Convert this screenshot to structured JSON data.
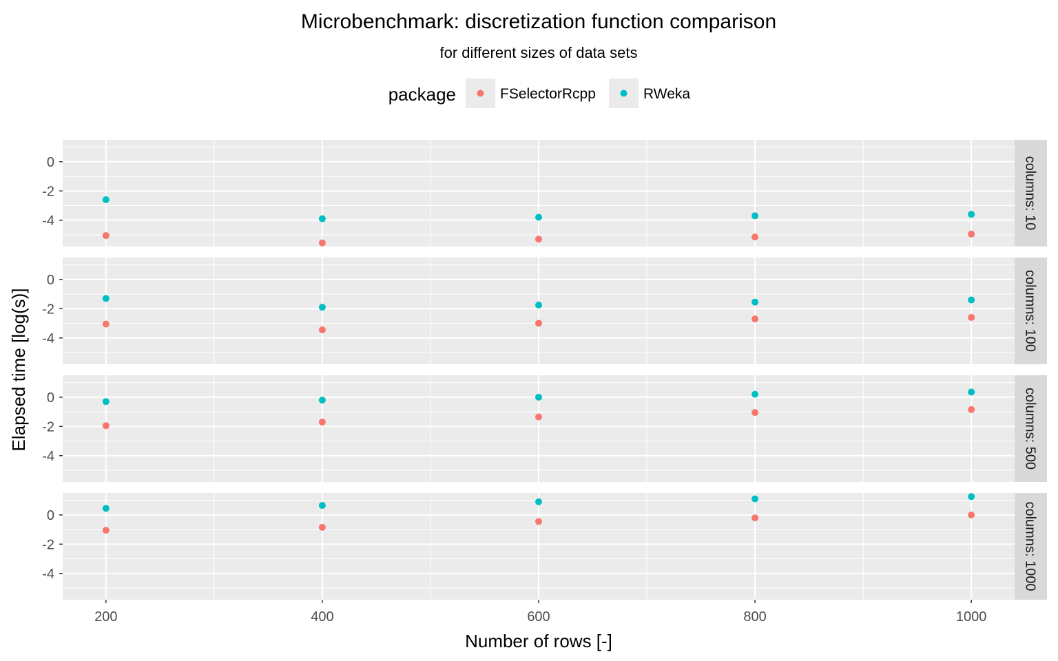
{
  "chart_data": {
    "type": "scatter",
    "title": "Microbenchmark: discretization function comparison",
    "subtitle": "for different sizes of data sets",
    "xlabel": "Number of rows [-]",
    "ylabel": "Elapsed time [log(s)]",
    "legend": {
      "title": "package",
      "placement": "top",
      "entries": [
        {
          "name": "FSelectorRcpp",
          "color": "#F8766D"
        },
        {
          "name": "RWeka",
          "color": "#00BFC4"
        }
      ]
    },
    "x_ticks": [
      200,
      400,
      600,
      800,
      1000
    ],
    "y_ticks": [
      0,
      -2,
      -4
    ],
    "xlim": [
      160,
      1040
    ],
    "ylim": [
      -5.8,
      1.5
    ],
    "grid": true,
    "x": [
      200,
      400,
      600,
      800,
      1000
    ],
    "panels": [
      {
        "label": "columns: 10",
        "series": [
          {
            "name": "FSelectorRcpp",
            "values": [
              -5.05,
              -5.55,
              -5.3,
              -5.15,
              -4.95
            ]
          },
          {
            "name": "RWeka",
            "values": [
              -2.6,
              -3.9,
              -3.8,
              -3.7,
              -3.6
            ]
          }
        ]
      },
      {
        "label": "columns: 100",
        "series": [
          {
            "name": "FSelectorRcpp",
            "values": [
              -3.05,
              -3.45,
              -3.0,
              -2.7,
              -2.6
            ]
          },
          {
            "name": "RWeka",
            "values": [
              -1.3,
              -1.9,
              -1.75,
              -1.55,
              -1.4
            ]
          }
        ]
      },
      {
        "label": "columns: 500",
        "series": [
          {
            "name": "FSelectorRcpp",
            "values": [
              -1.95,
              -1.7,
              -1.35,
              -1.05,
              -0.85
            ]
          },
          {
            "name": "RWeka",
            "values": [
              -0.3,
              -0.2,
              0.0,
              0.2,
              0.35
            ]
          }
        ]
      },
      {
        "label": "columns: 1000",
        "series": [
          {
            "name": "FSelectorRcpp",
            "values": [
              -1.05,
              -0.85,
              -0.45,
              -0.2,
              0.0
            ]
          },
          {
            "name": "RWeka",
            "values": [
              0.45,
              0.65,
              0.9,
              1.1,
              1.25
            ]
          }
        ]
      }
    ]
  }
}
